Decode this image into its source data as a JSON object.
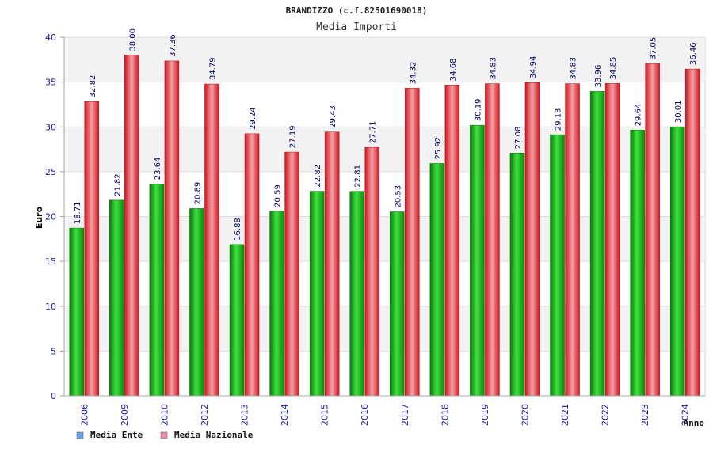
{
  "header": {
    "title": "BRANDIZZO (c.f.82501690018)",
    "subtitle": "Media Importi"
  },
  "colors": {
    "series_ente": "#1fb51f",
    "series_nazionale": "#e8303a",
    "legend_ente": "#6aa5e6",
    "legend_nazionale": "#e88ab0",
    "axis_text": "#1a1aa6",
    "label_text": "#000066",
    "plot_bg_band": "#f2f2f2",
    "grid": "#dddddd"
  },
  "chart_data": {
    "type": "bar",
    "title": "BRANDIZZO (c.f.82501690018)",
    "subtitle": "Media Importi",
    "xlabel": "Anno",
    "ylabel": "Euro",
    "ylim": [
      0,
      40
    ],
    "yticks": [
      0,
      5,
      10,
      15,
      20,
      25,
      30,
      35,
      40
    ],
    "categories": [
      "2006",
      "2009",
      "2010",
      "2012",
      "2013",
      "2014",
      "2015",
      "2016",
      "2017",
      "2018",
      "2019",
      "2020",
      "2021",
      "2022",
      "2023",
      "2024"
    ],
    "series": [
      {
        "name": "Media Ente",
        "values": [
          18.71,
          21.82,
          23.64,
          20.89,
          16.88,
          20.59,
          22.82,
          22.81,
          20.53,
          25.92,
          30.19,
          27.08,
          29.13,
          33.96,
          29.64,
          30.01
        ]
      },
      {
        "name": "Media Nazionale",
        "values": [
          32.82,
          38.0,
          37.36,
          34.79,
          29.24,
          27.19,
          29.43,
          27.71,
          34.32,
          34.68,
          34.83,
          34.94,
          34.83,
          34.85,
          37.05,
          36.46
        ]
      }
    ],
    "data_labels": [
      [
        "18.71",
        "21.82",
        "23.64",
        "20.89",
        "16.88",
        "20.59",
        "22.82",
        "22.81",
        "20.53",
        "25.92",
        "30.19",
        "27.08",
        "29.13",
        "33.96",
        "29.64",
        "30.01"
      ],
      [
        "32.82",
        "38.00",
        "37.36",
        "34.79",
        "29.24",
        "27.19",
        "29.43",
        "27.71",
        "34.32",
        "34.68",
        "34.83",
        "34.94",
        "34.83",
        "34.85",
        "37.05",
        "36.46"
      ]
    ],
    "grid": true,
    "legend_position": "bottom-left"
  }
}
